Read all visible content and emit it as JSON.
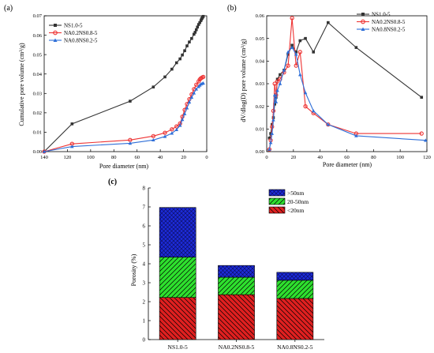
{
  "chart_data": [
    {
      "panel_label": "(a)",
      "type": "line",
      "xlabel": "Pore diameter (nm)",
      "ylabel": "Cumulative pore volume (cm³/g)",
      "xlim": [
        140,
        0
      ],
      "ylim": [
        0,
        0.07
      ],
      "xticks": [
        140,
        120,
        100,
        80,
        60,
        40,
        20,
        0
      ],
      "yticks": [
        0.0,
        0.01,
        0.02,
        0.03,
        0.04,
        0.05,
        0.06,
        0.07
      ],
      "legend_position": "top-left",
      "series": [
        {
          "name": "NS1.0-5",
          "color": "#333333",
          "marker": "square",
          "x": [
            140,
            116,
            66,
            46,
            36,
            30,
            26,
            23,
            21,
            19,
            17,
            15,
            13,
            11,
            10,
            9,
            8,
            7,
            6,
            5,
            4.5,
            4,
            3.5,
            3
          ],
          "y": [
            0.0,
            0.0143,
            0.026,
            0.0333,
            0.0385,
            0.0425,
            0.0458,
            0.0478,
            0.0498,
            0.052,
            0.0545,
            0.0565,
            0.0583,
            0.0605,
            0.0615,
            0.0628,
            0.0642,
            0.0655,
            0.0665,
            0.0675,
            0.0683,
            0.0688,
            0.0693,
            0.0697
          ]
        },
        {
          "name": "NA0.2NS0.8-5",
          "color": "#ee3333",
          "marker": "circle",
          "x": [
            140,
            116,
            66,
            46,
            36,
            30,
            26,
            23,
            21,
            19,
            17,
            15,
            13,
            11,
            9,
            7,
            6,
            5,
            4,
            3
          ],
          "y": [
            0.0,
            0.004,
            0.006,
            0.008,
            0.0097,
            0.0115,
            0.013,
            0.0145,
            0.018,
            0.0215,
            0.0245,
            0.027,
            0.0295,
            0.0322,
            0.0345,
            0.0362,
            0.0372,
            0.0378,
            0.0382,
            0.0385
          ]
        },
        {
          "name": "NA0.8NS0.2-5",
          "color": "#2f6fd8",
          "marker": "triangle",
          "x": [
            140,
            116,
            66,
            46,
            36,
            30,
            26,
            23,
            21,
            19,
            17,
            15,
            13,
            11,
            9,
            7,
            6,
            5,
            4,
            3
          ],
          "y": [
            0.0,
            0.0026,
            0.0043,
            0.006,
            0.0078,
            0.0095,
            0.0113,
            0.0135,
            0.0165,
            0.0195,
            0.0225,
            0.0255,
            0.028,
            0.0302,
            0.0322,
            0.0335,
            0.0342,
            0.0348,
            0.0351,
            0.0353
          ]
        }
      ]
    },
    {
      "panel_label": "(b)",
      "type": "line",
      "xlabel": "Pore diameter (nm)",
      "ylabel": "dV/dlog(D) pore volume (cm³/g)",
      "xlim": [
        0,
        120
      ],
      "ylim": [
        0,
        0.06
      ],
      "xticks": [
        0,
        20,
        40,
        60,
        80,
        100,
        120
      ],
      "yticks": [
        0.0,
        0.01,
        0.02,
        0.03,
        0.04,
        0.05,
        0.06
      ],
      "legend_position": "top-right",
      "series": [
        {
          "name": "NS1.0-5",
          "color": "#333333",
          "marker": "square",
          "x": [
            2,
            3,
            4,
            5,
            6,
            7,
            8,
            10,
            13,
            16,
            19,
            22,
            25,
            29,
            35,
            46,
            67,
            116
          ],
          "y": [
            0.006,
            0.008,
            0.012,
            0.015,
            0.021,
            0.024,
            0.032,
            0.034,
            0.036,
            0.043,
            0.047,
            0.044,
            0.049,
            0.05,
            0.044,
            0.057,
            0.046,
            0.024
          ]
        },
        {
          "name": "NA0.2NS0.8-5",
          "color": "#ee3333",
          "marker": "circle",
          "x": [
            2,
            3,
            4,
            5,
            6,
            7,
            8,
            10,
            13,
            16,
            19,
            22,
            25,
            29,
            35,
            46,
            67,
            116
          ],
          "y": [
            0.001,
            0.005,
            0.011,
            0.018,
            0.03,
            0.025,
            0.031,
            0.032,
            0.035,
            0.038,
            0.059,
            0.038,
            0.044,
            0.02,
            0.017,
            0.012,
            0.008,
            0.008
          ]
        },
        {
          "name": "NA0.8NS0.2-5",
          "color": "#2f6fd8",
          "marker": "triangle",
          "x": [
            2,
            3,
            4,
            5,
            6,
            7,
            8,
            10,
            13,
            16,
            19,
            22,
            25,
            29,
            35,
            46,
            67,
            119
          ],
          "y": [
            0.001,
            0.004,
            0.008,
            0.014,
            0.025,
            0.022,
            0.027,
            0.03,
            0.036,
            0.044,
            0.046,
            0.043,
            0.034,
            0.026,
            0.018,
            0.012,
            0.007,
            0.005
          ]
        }
      ]
    },
    {
      "panel_label": "(c)",
      "type": "bar",
      "stacked": true,
      "categories": [
        "NS1.0-5",
        "NA0.2NS0.8-5",
        "NA0.8NS0.2-5"
      ],
      "ylabel": "Porosity (%)",
      "ylim": [
        0,
        8
      ],
      "yticks": [
        0,
        1,
        2,
        3,
        4,
        5,
        6,
        7,
        8
      ],
      "legend_position": "top-right",
      "legend_order": [
        ">50nm",
        "20-50nm",
        "<20nm"
      ],
      "series": [
        {
          "name": "<20nm",
          "color": "#e02020",
          "values": [
            2.22,
            2.37,
            2.17
          ]
        },
        {
          "name": "20-50nm",
          "color": "#2ee02e",
          "values": [
            2.13,
            0.92,
            0.96
          ]
        },
        {
          "name": ">50nm",
          "color": "#1c2bd8",
          "values": [
            2.62,
            0.62,
            0.42
          ]
        }
      ]
    }
  ]
}
